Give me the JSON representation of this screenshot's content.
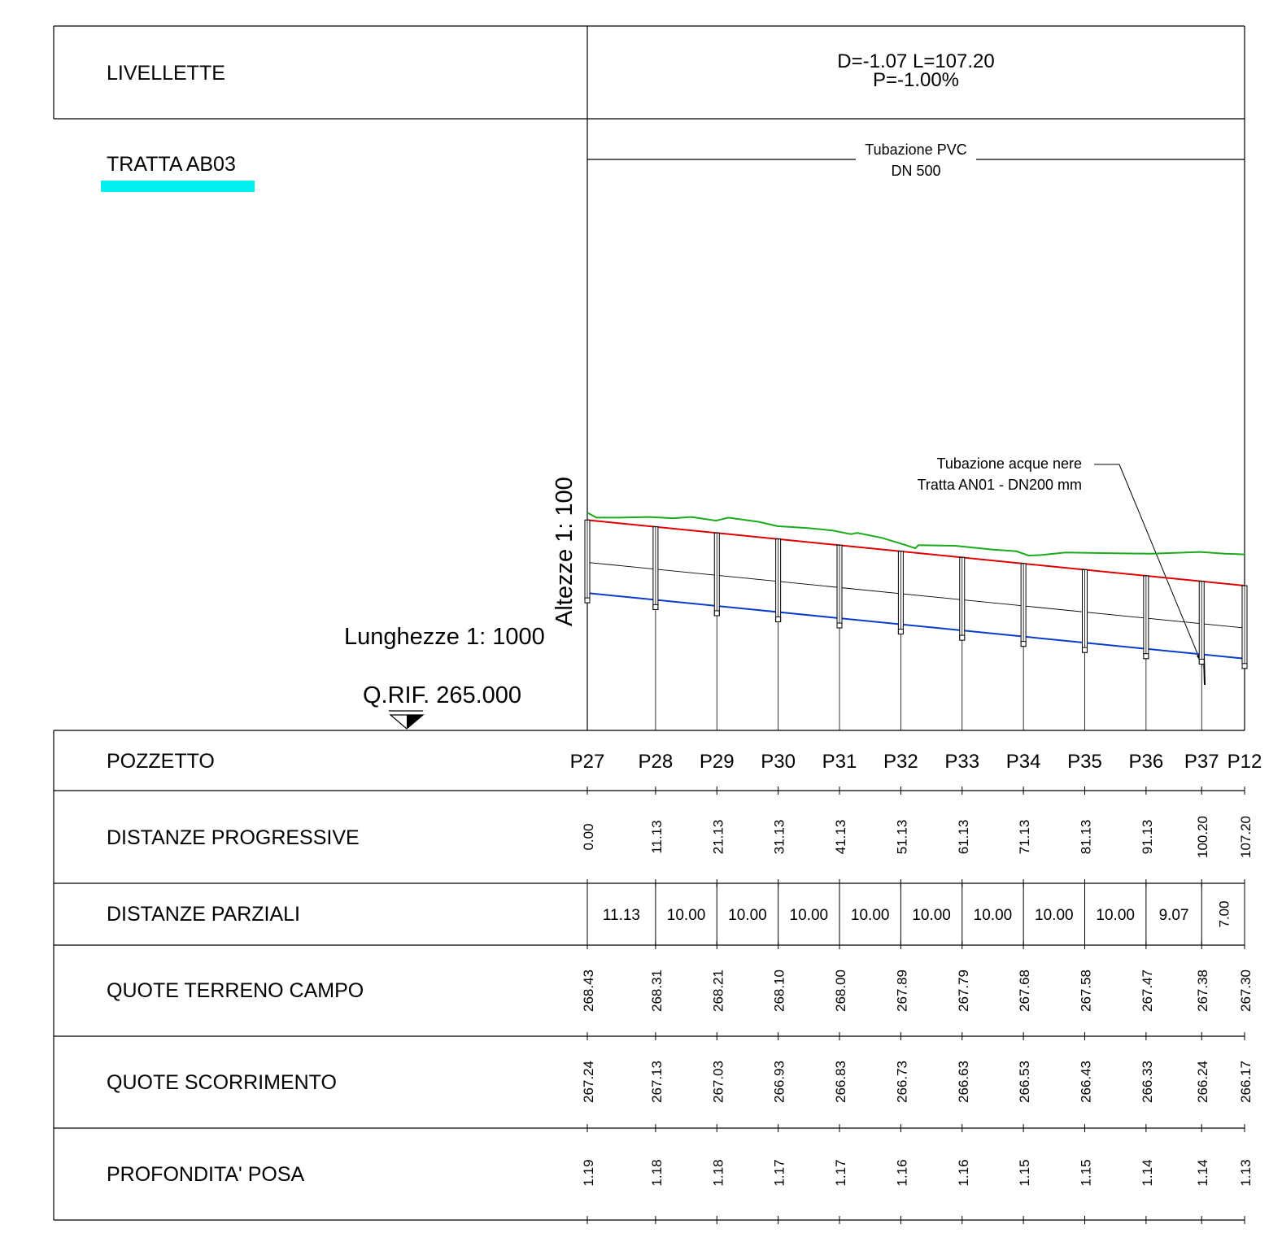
{
  "header": {
    "livellette_label": "LIVELLETTE",
    "livellette_line1": "D=-1.07 L=107.20",
    "livellette_line2": "P=-1.00%",
    "tratta_label": "TRATTA AB03",
    "tratta_color": "#00f0f0",
    "pipe_line1": "Tubazione PVC",
    "pipe_line2": "DN 500"
  },
  "profile": {
    "scale_heights": "Altezze 1: 100",
    "scale_lengths": "Lunghezze 1: 1000",
    "reference_level": "Q.RIF. 265.000",
    "reference_value": 265.0,
    "annotation_line1": "Tubazione acque nere",
    "annotation_line2": "Tratta AN01 - DN200 mm",
    "ground_line_color": "#1aaa1a",
    "top_pipe_line_color": "#e00000",
    "invert_line_color": "#0a3ccc",
    "ground_profile": [
      [
        0,
        268.55
      ],
      [
        1.5,
        268.47
      ],
      [
        5,
        268.47
      ],
      [
        10,
        268.48
      ],
      [
        14,
        268.46
      ],
      [
        17,
        268.48
      ],
      [
        21,
        268.42
      ],
      [
        23,
        268.47
      ],
      [
        28,
        268.4
      ],
      [
        31,
        268.33
      ],
      [
        36,
        268.3
      ],
      [
        40,
        268.26
      ],
      [
        43,
        268.2
      ],
      [
        44,
        268.22
      ],
      [
        48,
        268.14
      ],
      [
        52,
        268.02
      ],
      [
        53.5,
        267.97
      ],
      [
        54,
        268.02
      ],
      [
        60,
        268.01
      ],
      [
        66,
        267.95
      ],
      [
        70,
        267.92
      ],
      [
        72,
        267.85
      ],
      [
        74,
        267.86
      ],
      [
        78,
        267.9
      ],
      [
        85,
        267.89
      ],
      [
        92,
        267.88
      ],
      [
        100,
        267.91
      ],
      [
        104,
        267.88
      ],
      [
        107.2,
        267.87
      ]
    ]
  },
  "table": {
    "row_labels": {
      "pozzetto": "POZZETTO",
      "distanze_progressive": "DISTANZE PROGRESSIVE",
      "distanze_parziali": "DISTANZE PARZIALI",
      "quote_terreno": "QUOTE TERRENO CAMPO",
      "quote_scorrimento": "QUOTE SCORRIMENTO",
      "profondita": "PROFONDITA' POSA"
    },
    "stations": [
      {
        "name": "P27",
        "progressive": 0.0,
        "progressive_text": "0.00",
        "terreno": "268.43",
        "scorrimento": "267.24",
        "profondita": "1.19"
      },
      {
        "name": "P28",
        "progressive": 11.13,
        "progressive_text": "11.13",
        "terreno": "268.31",
        "scorrimento": "267.13",
        "profondita": "1.18"
      },
      {
        "name": "P29",
        "progressive": 21.13,
        "progressive_text": "21.13",
        "terreno": "268.21",
        "scorrimento": "267.03",
        "profondita": "1.18"
      },
      {
        "name": "P30",
        "progressive": 31.13,
        "progressive_text": "31.13",
        "terreno": "268.10",
        "scorrimento": "266.93",
        "profondita": "1.17"
      },
      {
        "name": "P31",
        "progressive": 41.13,
        "progressive_text": "41.13",
        "terreno": "268.00",
        "scorrimento": "266.83",
        "profondita": "1.17"
      },
      {
        "name": "P32",
        "progressive": 51.13,
        "progressive_text": "51.13",
        "terreno": "267.89",
        "scorrimento": "266.73",
        "profondita": "1.16"
      },
      {
        "name": "P33",
        "progressive": 61.13,
        "progressive_text": "61.13",
        "terreno": "267.79",
        "scorrimento": "266.63",
        "profondita": "1.16"
      },
      {
        "name": "P34",
        "progressive": 71.13,
        "progressive_text": "71.13",
        "terreno": "267.68",
        "scorrimento": "266.53",
        "profondita": "1.15"
      },
      {
        "name": "P35",
        "progressive": 81.13,
        "progressive_text": "81.13",
        "terreno": "267.58",
        "scorrimento": "266.43",
        "profondita": "1.15"
      },
      {
        "name": "P36",
        "progressive": 91.13,
        "progressive_text": "91.13",
        "terreno": "267.47",
        "scorrimento": "266.33",
        "profondita": "1.14"
      },
      {
        "name": "P37",
        "progressive": 100.2,
        "progressive_text": "100.20",
        "terreno": "267.38",
        "scorrimento": "266.24",
        "profondita": "1.14"
      },
      {
        "name": "P12",
        "progressive": 107.2,
        "progressive_text": "107.20",
        "terreno": "267.30",
        "scorrimento": "266.17",
        "profondita": "1.13"
      }
    ],
    "partials": [
      "11.13",
      "10.00",
      "10.00",
      "10.00",
      "10.00",
      "10.00",
      "10.00",
      "10.00",
      "10.00",
      "9.07",
      "7.00"
    ]
  }
}
